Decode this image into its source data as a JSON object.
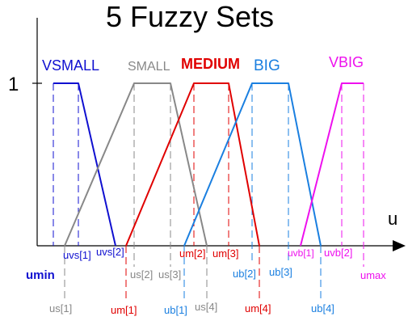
{
  "title": "5 Fuzzy Sets",
  "axis": {
    "u_label": "u",
    "one_label": "1"
  },
  "colors": {
    "vsmall": "#1010d0",
    "small": "#888888",
    "medium": "#e00000",
    "big": "#1a7fe0",
    "vbig": "#ee10ee",
    "axis": "#000000"
  },
  "sets": {
    "vsmall": {
      "name": "VSMALL"
    },
    "small": {
      "name": "SMALL"
    },
    "medium": {
      "name": "MEDIUM"
    },
    "big": {
      "name": "BIG"
    },
    "vbig": {
      "name": "VBIG"
    }
  },
  "labels": {
    "umin": "umin",
    "umax": "umax",
    "uvs1": "uvs[1]",
    "uvs2": "uvs[2]",
    "us1": "us[1]",
    "us2": "us[2]",
    "us3": "us[3]",
    "us4": "us[4]",
    "um1": "um[1]",
    "um2": "um[2]",
    "um3": "um[3]",
    "um4": "um[4]",
    "ub1": "ub[1]",
    "ub2": "ub[2]",
    "ub3": "ub[3]",
    "ub4": "ub[4]",
    "uvb1": "uvb[1]",
    "uvb2": "uvb[2]"
  }
}
